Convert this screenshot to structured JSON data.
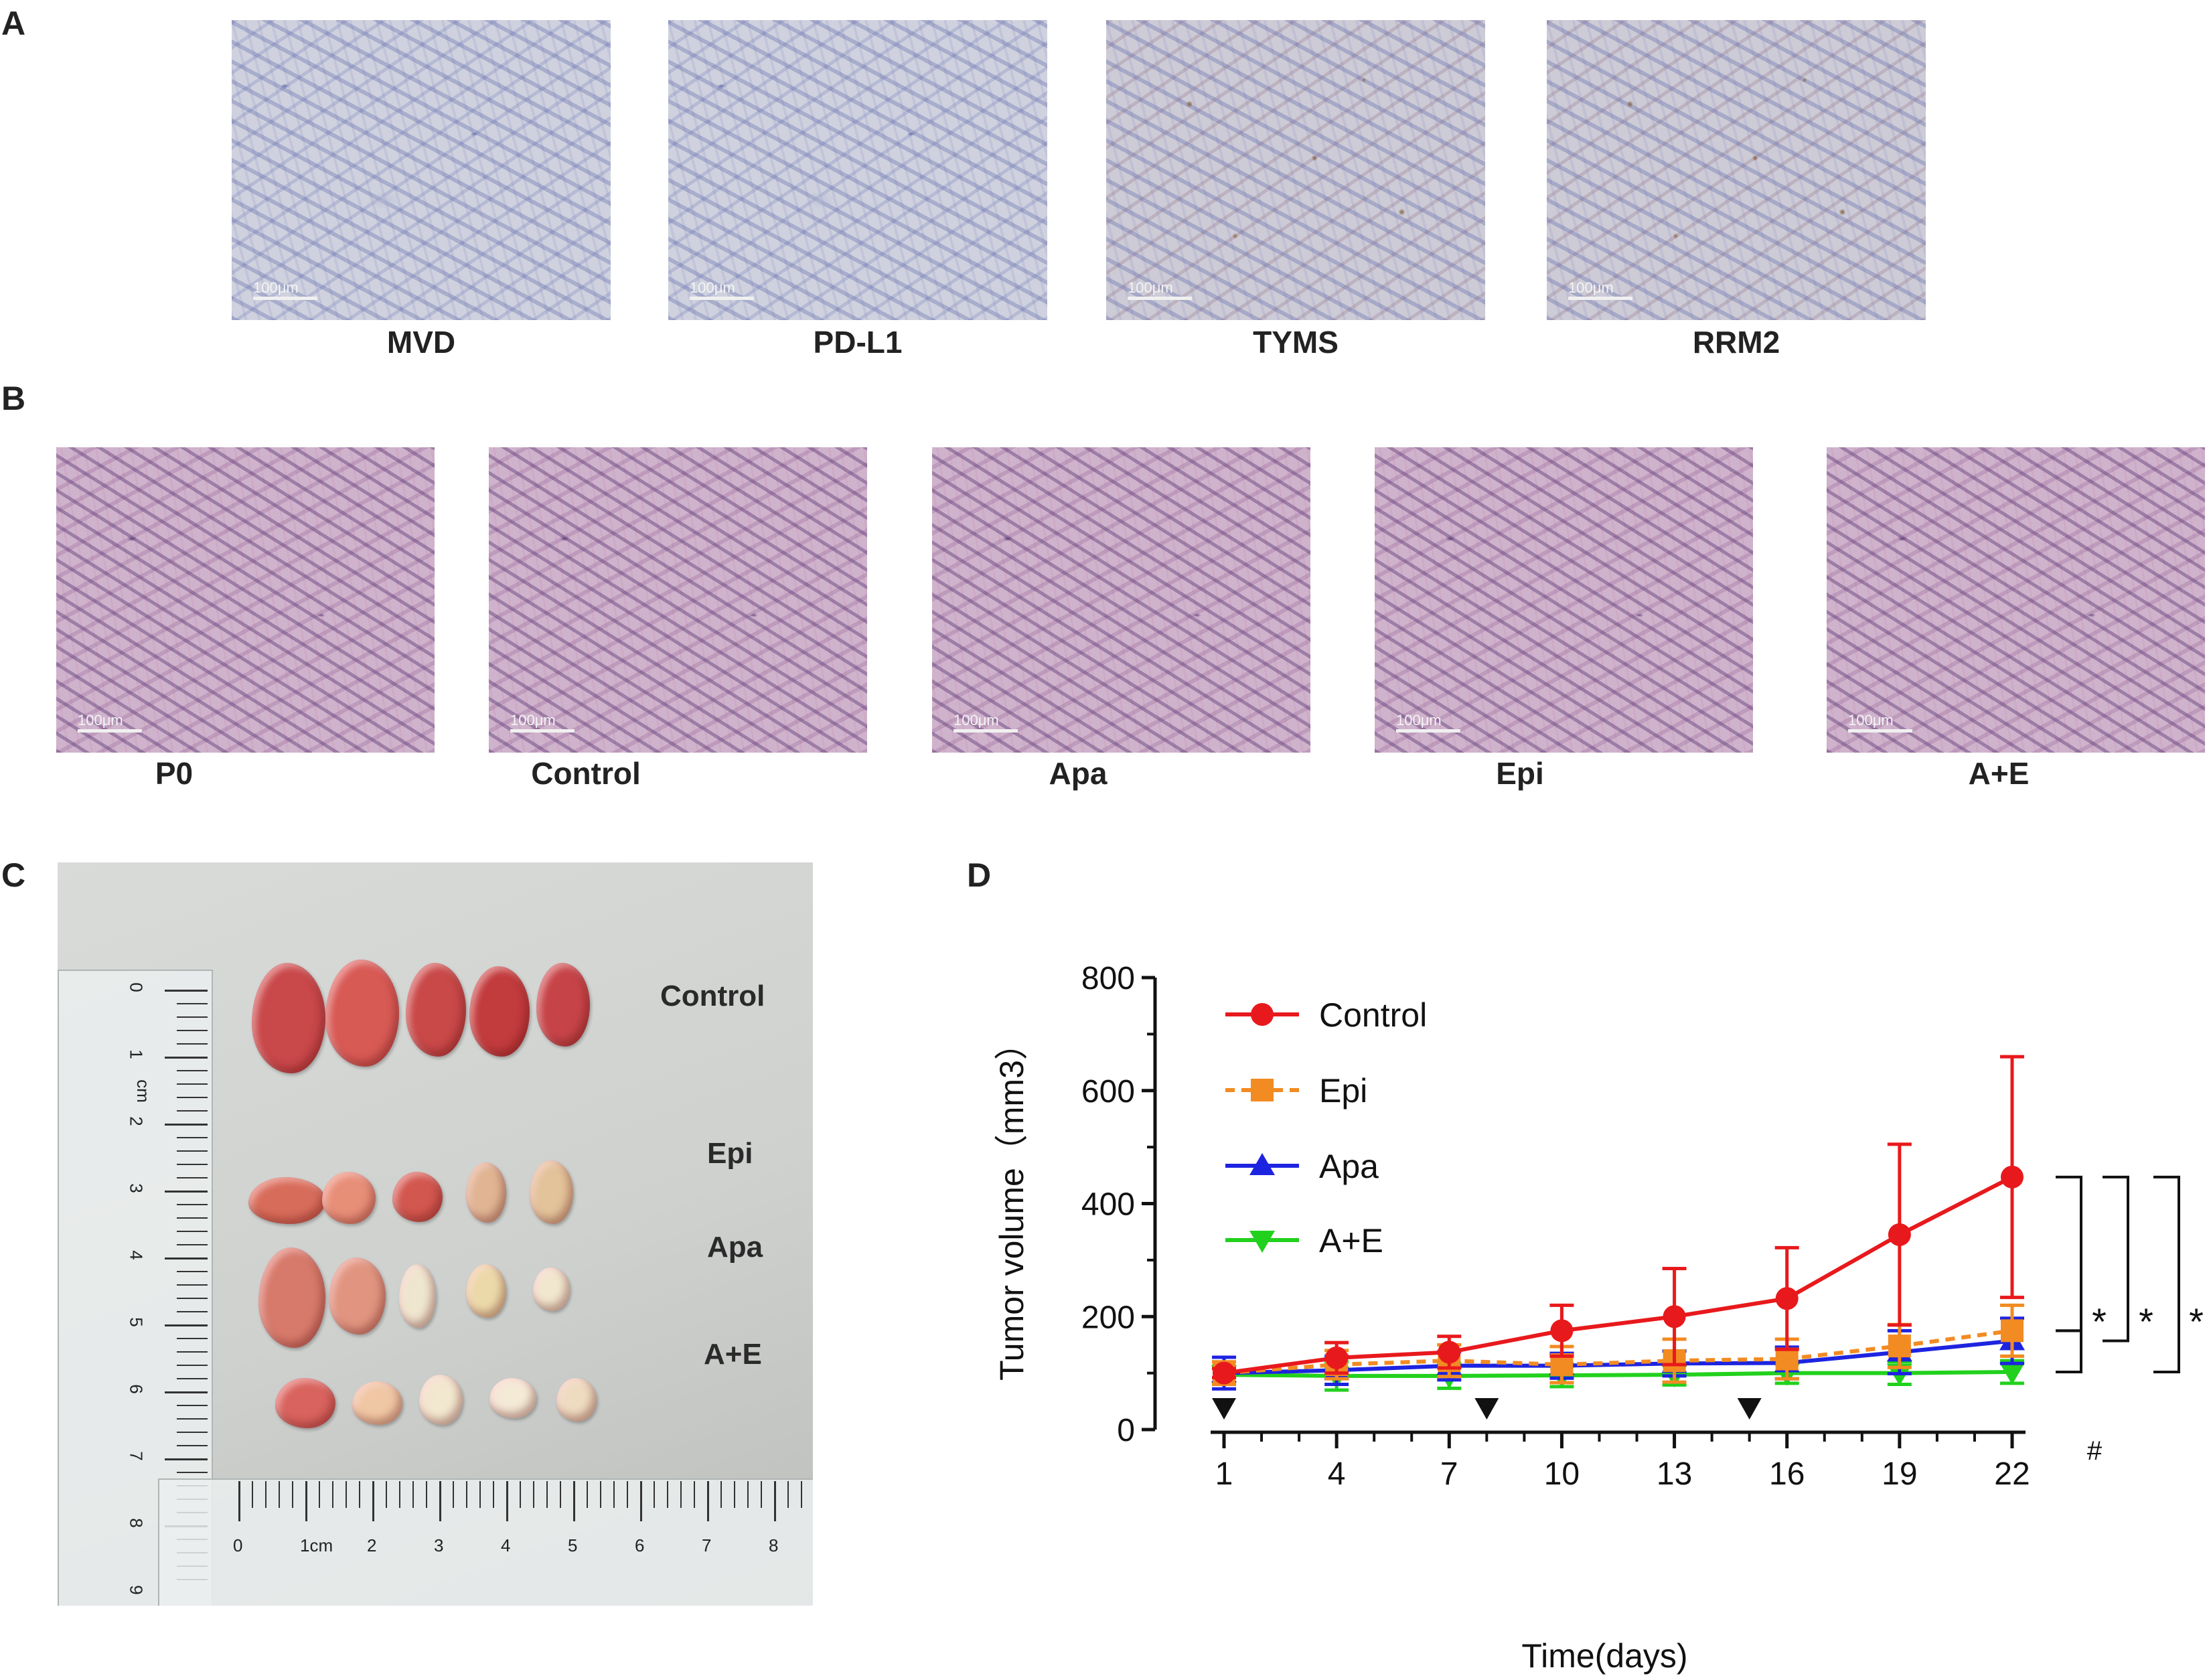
{
  "panels": {
    "a": {
      "letter": "A",
      "images": [
        {
          "label": "MVD",
          "scale": "100μm"
        },
        {
          "label": "PD-L1",
          "scale": "100μm"
        },
        {
          "label": "TYMS",
          "scale": "100μm"
        },
        {
          "label": "RRM2",
          "scale": "100μm"
        }
      ]
    },
    "b": {
      "letter": "B",
      "images": [
        {
          "label": "P0",
          "scale": "100μm"
        },
        {
          "label": "Control",
          "scale": "100μm"
        },
        {
          "label": "Apa",
          "scale": "100μm"
        },
        {
          "label": "Epi",
          "scale": "100μm"
        },
        {
          "label": "A+E",
          "scale": "100μm"
        }
      ]
    },
    "c": {
      "letter": "C",
      "rows": [
        "Control",
        "Epi",
        "Apa",
        "A+E"
      ],
      "ruler_v_labels": [
        "0",
        "1",
        "cm",
        "2",
        "3",
        "4",
        "5",
        "6",
        "7",
        "8",
        "9"
      ],
      "ruler_h_labels": [
        "0",
        "1cm",
        "2",
        "3",
        "4",
        "5",
        "6",
        "7",
        "8"
      ]
    },
    "d": {
      "letter": "D"
    }
  },
  "chart_data": {
    "type": "line",
    "xlabel": "Time(days)",
    "ylabel": "Tumor volume（mm3）",
    "x": [
      1,
      4,
      7,
      10,
      13,
      16,
      19,
      22
    ],
    "xlim": [
      1,
      22
    ],
    "ylim": [
      0,
      800
    ],
    "yticks": [
      0,
      200,
      400,
      600,
      800
    ],
    "series": [
      {
        "name": "Control",
        "color": "#e8191c",
        "marker": "circle",
        "dashed": false,
        "values": [
          100,
          127,
          137,
          175,
          200,
          232,
          345,
          447
        ],
        "errors": [
          8,
          27,
          28,
          45,
          85,
          90,
          160,
          213
        ]
      },
      {
        "name": "Epi",
        "color": "#f28b22",
        "marker": "square",
        "dashed": true,
        "values": [
          100,
          115,
          122,
          115,
          122,
          125,
          148,
          175
        ],
        "errors": [
          20,
          25,
          28,
          32,
          38,
          35,
          38,
          45
        ]
      },
      {
        "name": "Apa",
        "color": "#1d24e0",
        "marker": "triangle-up",
        "dashed": false,
        "values": [
          100,
          105,
          113,
          113,
          117,
          118,
          137,
          157
        ],
        "errors": [
          28,
          25,
          25,
          22,
          22,
          28,
          38,
          40
        ]
      },
      {
        "name": "A+E",
        "color": "#22d11d",
        "marker": "triangle-down",
        "dashed": false,
        "values": [
          97,
          95,
          95,
          96,
          97,
          100,
          100,
          102
        ],
        "errors": [
          15,
          25,
          22,
          20,
          18,
          18,
          20,
          20
        ]
      }
    ],
    "dosing_days": [
      1,
      8,
      15
    ],
    "annotations": [
      "*",
      "*",
      "*",
      "#"
    ],
    "legend": "top-left"
  }
}
